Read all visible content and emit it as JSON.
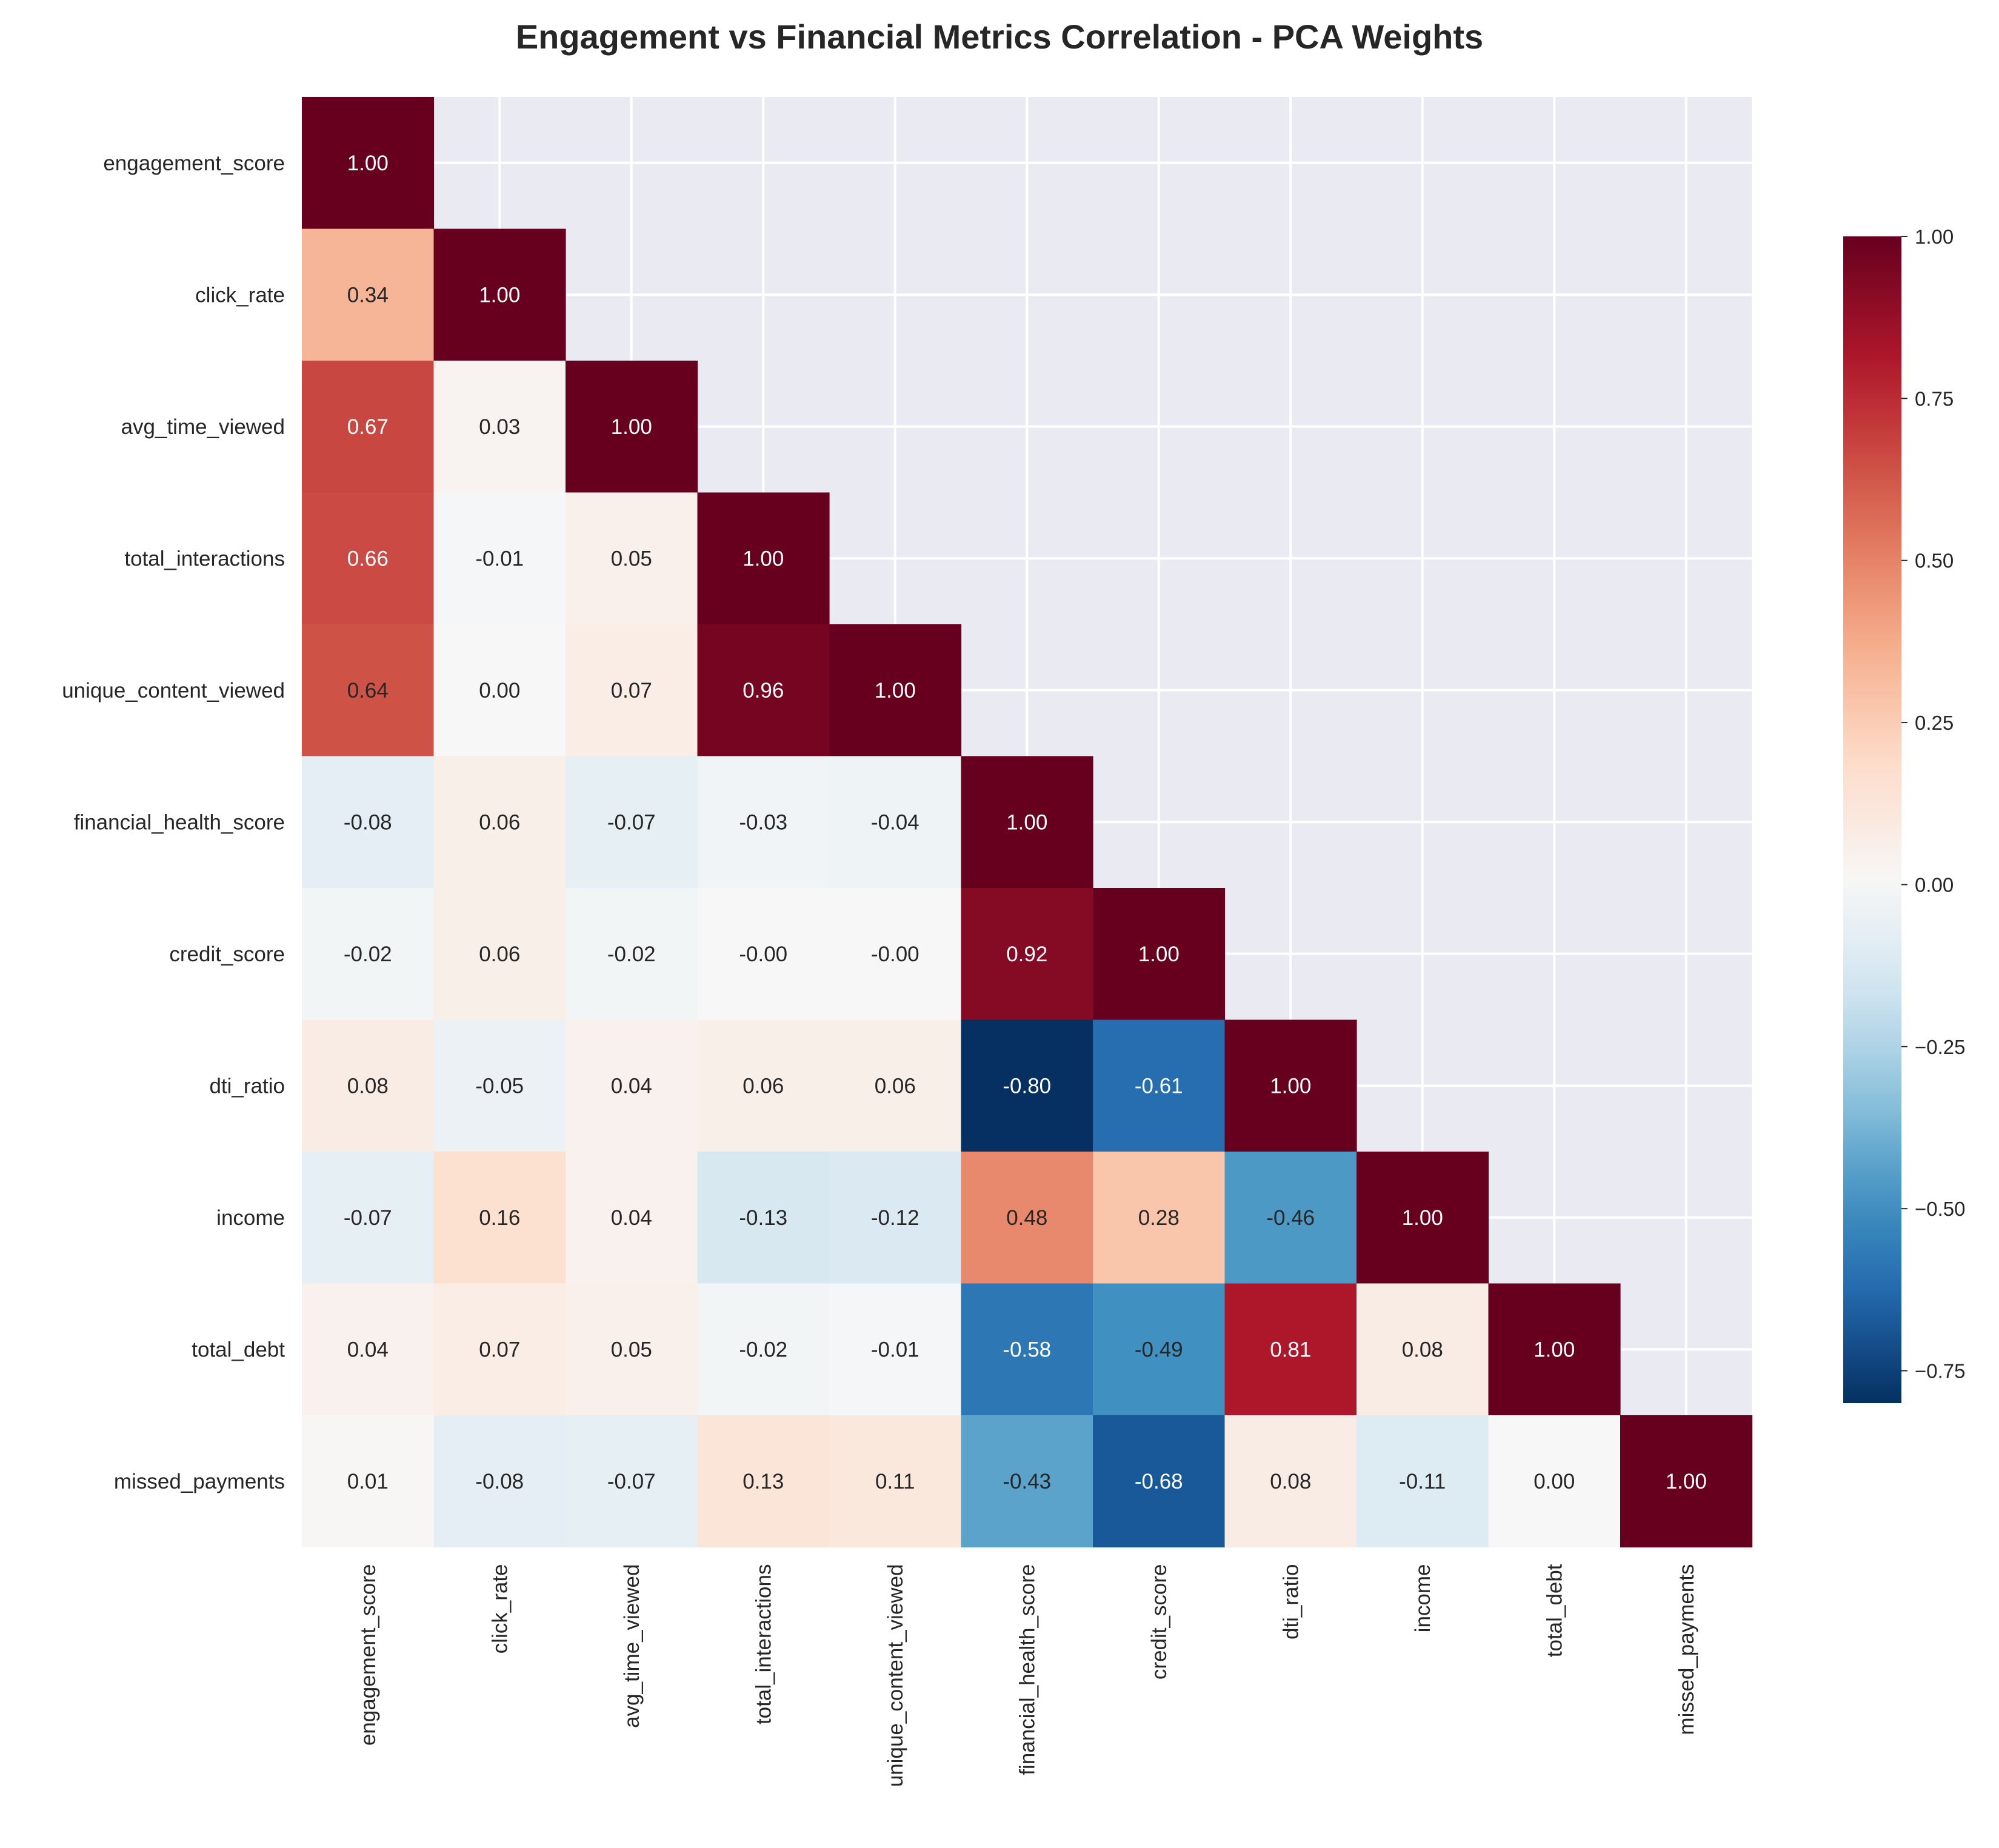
{
  "chart_data": {
    "type": "heatmap",
    "title": "Engagement vs Financial Metrics Correlation - PCA Weights",
    "variables": [
      "engagement_score",
      "click_rate",
      "avg_time_viewed",
      "total_interactions",
      "unique_content_viewed",
      "financial_health_score",
      "credit_score",
      "dti_ratio",
      "income",
      "total_debt",
      "missed_payments"
    ],
    "mask": "upper-triangle",
    "value_format": "2 decimals",
    "lower_triangle": [
      [
        "1.00"
      ],
      [
        "0.34",
        "1.00"
      ],
      [
        "0.67",
        "0.03",
        "1.00"
      ],
      [
        "0.66",
        "-0.01",
        "0.05",
        "1.00"
      ],
      [
        "0.64",
        "0.00",
        "0.07",
        "0.96",
        "1.00"
      ],
      [
        "-0.08",
        "0.06",
        "-0.07",
        "-0.03",
        "-0.04",
        "1.00"
      ],
      [
        "-0.02",
        "0.06",
        "-0.02",
        "-0.00",
        "-0.00",
        "0.92",
        "1.00"
      ],
      [
        "0.08",
        "-0.05",
        "0.04",
        "0.06",
        "0.06",
        "-0.80",
        "-0.61",
        "1.00"
      ],
      [
        "-0.07",
        "0.16",
        "0.04",
        "-0.13",
        "-0.12",
        "0.48",
        "0.28",
        "-0.46",
        "1.00"
      ],
      [
        "0.04",
        "0.07",
        "0.05",
        "-0.02",
        "-0.01",
        "-0.58",
        "-0.49",
        "0.81",
        "0.08",
        "1.00"
      ],
      [
        "0.01",
        "-0.08",
        "-0.07",
        "0.13",
        "0.11",
        "-0.43",
        "-0.68",
        "0.08",
        "-0.11",
        "0.00",
        "1.00"
      ]
    ],
    "colorscale": "RdBu_r",
    "color_range": [
      -0.8,
      1.0
    ],
    "colorbar_ticks": [
      "1.00",
      "0.75",
      "0.50",
      "0.25",
      "0.00",
      "−0.25",
      "−0.50",
      "−0.75"
    ],
    "grid": true,
    "colorbar_position": "right"
  }
}
